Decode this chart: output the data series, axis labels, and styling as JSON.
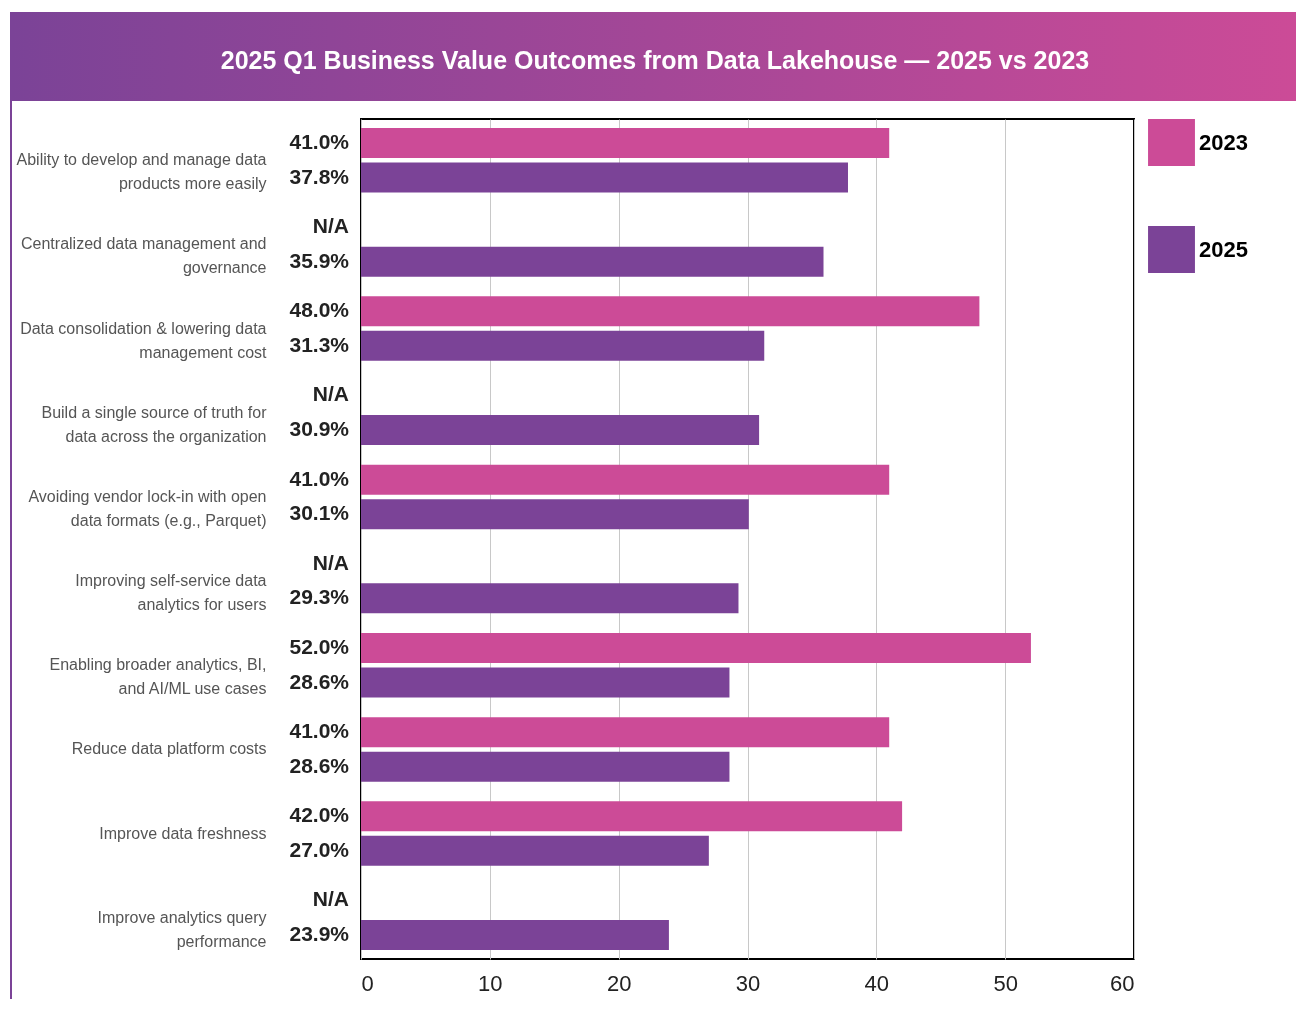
{
  "chart_data": {
    "type": "bar",
    "orientation": "horizontal",
    "title": "2025 Q1 Business Value Outcomes from Data Lakehouse  — 2025 vs 2023",
    "categories": [
      "Ability to develop and manage data products more easily",
      "Centralized data management and governance",
      "Data consolidation & lowering data management cost",
      "Build a single source of truth for data across the organization",
      "Avoiding vendor lock-in with open data formats (e.g., Parquet)",
      "Improving self-service data analytics for users",
      "Enabling broader analytics, BI, and AI/ML use cases",
      "Reduce data platform costs",
      "Improve data freshness",
      "Improve analytics query performance"
    ],
    "series": [
      {
        "name": "2023",
        "color": "#cc4b97",
        "values": [
          41.0,
          null,
          48.0,
          null,
          41.0,
          null,
          52.0,
          41.0,
          42.0,
          null
        ],
        "value_labels": [
          "41.0%",
          "N/A",
          "48.0%",
          "N/A",
          "41.0%",
          "N/A",
          "52.0%",
          "41.0%",
          "42.0%",
          "N/A"
        ]
      },
      {
        "name": "2025",
        "color": "#7b4397",
        "values": [
          37.8,
          35.9,
          31.3,
          30.9,
          30.1,
          29.3,
          28.6,
          28.6,
          27.0,
          23.9
        ],
        "value_labels": [
          "37.8%",
          "35.9%",
          "31.3%",
          "30.9%",
          "30.1%",
          "29.3%",
          "28.6%",
          "28.6%",
          "27.0%",
          "23.9%"
        ]
      }
    ],
    "xlim": [
      0,
      60
    ],
    "xticks": [
      0,
      10,
      20,
      30,
      40,
      50,
      60
    ],
    "grid": "x",
    "legend": "right"
  }
}
